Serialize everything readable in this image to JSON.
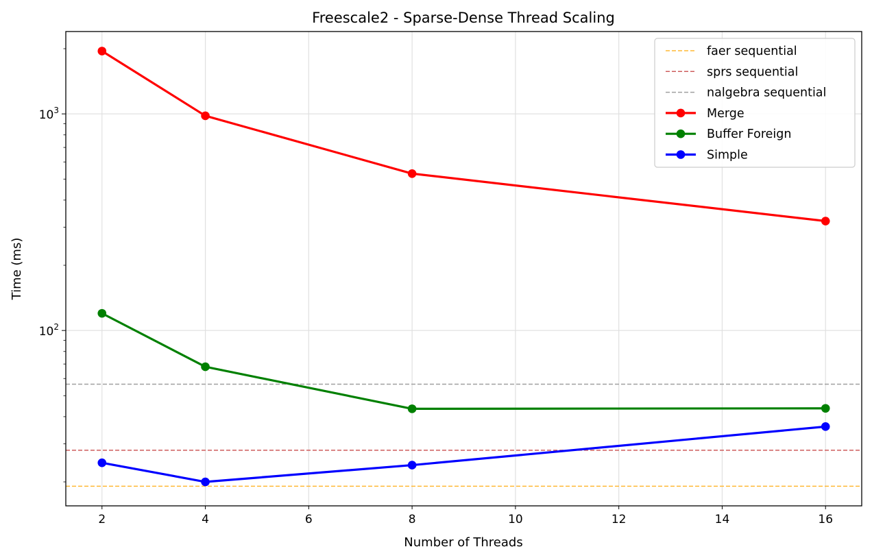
{
  "chart_data": {
    "type": "line",
    "title": "Freescale2 - Sparse-Dense Thread Scaling",
    "xlabel": "Number of Threads",
    "ylabel": "Time (ms)",
    "x": [
      2,
      4,
      8,
      16
    ],
    "xlim": [
      1.3,
      16.7
    ],
    "ylim": [
      15.5,
      2400
    ],
    "yscale": "log",
    "grid": true,
    "legend_position": "top-right",
    "x_ticks": [
      "2",
      "4",
      "6",
      "8",
      "10",
      "12",
      "14",
      "16"
    ],
    "y_ticks": [
      {
        "base": "10",
        "exp": "2",
        "value": 100
      },
      {
        "base": "10",
        "exp": "3",
        "value": 1000
      }
    ],
    "series": [
      {
        "name": "Merge",
        "color": "#ff0000",
        "values": [
          1950,
          980,
          530,
          320
        ]
      },
      {
        "name": "Buffer Foreign",
        "color": "#008000",
        "values": [
          120,
          68,
          43.5,
          43.7
        ]
      },
      {
        "name": "Simple",
        "color": "#0000ff",
        "values": [
          24.5,
          20,
          23.9,
          36
        ]
      }
    ],
    "reference_lines": [
      {
        "name": "faer sequential",
        "color": "#ffb833",
        "value": 19.1
      },
      {
        "name": "sprs sequential",
        "color": "#cd5c5c",
        "value": 28
      },
      {
        "name": "nalgebra sequential",
        "color": "#a0a0a0",
        "value": 56.5
      }
    ]
  }
}
